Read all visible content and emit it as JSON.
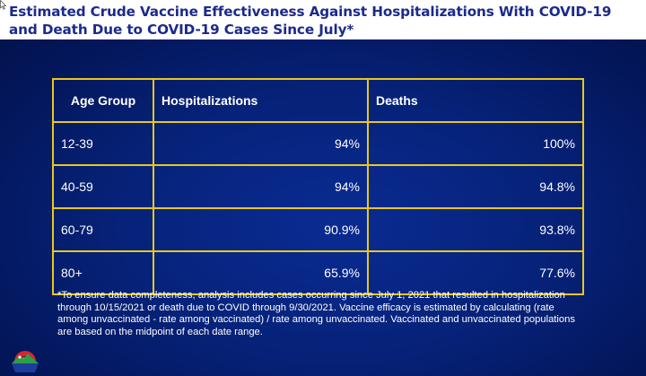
{
  "slide": {
    "title": "Estimated Crude Vaccine Effectiveness Against Hospitalizations With COVID-19 and Death Due to COVID-19 Cases Since July*"
  },
  "table": {
    "headers": [
      "Age Group",
      "Hospitalizations",
      "Deaths"
    ],
    "rows": [
      [
        "12-39",
        "94%",
        "100%"
      ],
      [
        "40-59",
        "94%",
        "94.8%"
      ],
      [
        "60-79",
        "90.9%",
        "93.8%"
      ],
      [
        "80+",
        "65.9%",
        "77.6%"
      ]
    ]
  },
  "footnote": "*To ensure data completeness, analysis includes cases occurring since July 1, 2021 that resulted in hospitalization through 10/15/2021 or death due to COVID through 9/30/2021. Vaccine efficacy is estimated by calculating (rate among unvaccinated - rate among vaccinated) / rate among unvaccinated. Vaccinated and unvaccinated populations are based on the midpoint of each date range.",
  "colors": {
    "title": "#1b2a8c",
    "background": "#062279",
    "table_border": "#e8c81d",
    "text": "#ffffff"
  },
  "icons": [
    "cursor-arrow-icon",
    "colorado-logo-icon"
  ]
}
